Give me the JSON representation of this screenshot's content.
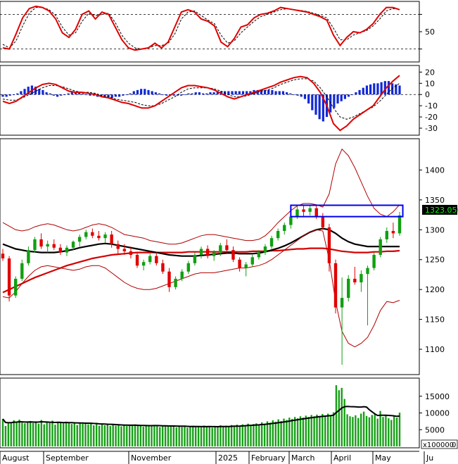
{
  "chart_data": [
    {
      "id": "stochastic",
      "type": "line",
      "y_ticks": [
        50
      ],
      "guides": [
        80,
        20
      ],
      "series": [
        {
          "color": "#e00000",
          "values": [
            22,
            20,
            46,
            74,
            90,
            94,
            92,
            86,
            72,
            48,
            40,
            54,
            80,
            86,
            72,
            84,
            80,
            58,
            36,
            22,
            18,
            20,
            22,
            30,
            22,
            32,
            58,
            84,
            88,
            84,
            72,
            68,
            60,
            32,
            24,
            38,
            58,
            62,
            74,
            80,
            82,
            86,
            92,
            90,
            88,
            86,
            84,
            80,
            76,
            70,
            44,
            26,
            40,
            50,
            48,
            54,
            64,
            80,
            92,
            92,
            88
          ]
        },
        {
          "color": "#000000",
          "values": [
            28,
            22,
            34,
            60,
            82,
            92,
            92,
            88,
            78,
            58,
            44,
            48,
            68,
            82,
            78,
            80,
            82,
            66,
            44,
            30,
            22,
            20,
            22,
            26,
            26,
            30,
            46,
            72,
            84,
            86,
            78,
            70,
            64,
            44,
            30,
            34,
            48,
            58,
            68,
            76,
            80,
            84,
            88,
            90,
            88,
            87,
            85,
            82,
            78,
            74,
            56,
            36,
            36,
            44,
            48,
            52,
            60,
            72,
            86,
            90,
            89
          ]
        }
      ],
      "ylim": [
        0,
        100
      ]
    },
    {
      "id": "macd",
      "type": "bar",
      "y_ticks": [
        20,
        10,
        0,
        -10,
        -20,
        -30
      ],
      "ylim": [
        -35,
        24
      ],
      "histogram": [
        -2,
        -2,
        -1,
        0,
        1,
        3,
        5,
        7,
        8,
        7,
        5,
        4,
        2,
        1,
        -1,
        -2,
        -1,
        0,
        1,
        2,
        2,
        2,
        1,
        0,
        -1,
        -1,
        -2,
        -2,
        -3,
        -3,
        -3,
        -2,
        -2,
        -1,
        0,
        1,
        3,
        4,
        5,
        5,
        4,
        3,
        2,
        1,
        0,
        -1,
        -1,
        -1,
        -1,
        -1,
        0,
        1,
        1,
        2,
        2,
        1,
        1,
        2,
        2,
        3,
        3,
        3,
        3,
        3,
        3,
        3,
        3,
        3,
        3,
        4,
        4,
        4,
        4,
        4,
        4,
        3,
        3,
        3,
        2,
        1,
        0,
        -1,
        -2,
        -4,
        -8,
        -14,
        -18,
        -22,
        -24,
        -20,
        -16,
        -12,
        -8,
        -6,
        -4,
        -2,
        0,
        2,
        4,
        6,
        8,
        9,
        10,
        10,
        11,
        12,
        12,
        10,
        9,
        8
      ],
      "series": [
        {
          "color": "#e00000",
          "values": [
            -6,
            -8,
            -6,
            -2,
            2,
            6,
            9,
            10,
            9,
            6,
            3,
            2,
            2,
            1,
            0,
            -2,
            -3,
            -5,
            -7,
            -8,
            -10,
            -12,
            -12,
            -10,
            -6,
            -2,
            2,
            6,
            8,
            8,
            7,
            6,
            4,
            1,
            -2,
            -4,
            -2,
            0,
            2,
            4,
            6,
            8,
            11,
            13,
            15,
            16,
            15,
            10,
            2,
            -10,
            -26,
            -32,
            -28,
            -22,
            -18,
            -14,
            -10,
            -2,
            6,
            12,
            17
          ]
        },
        {
          "color": "#000000",
          "values": [
            -4,
            -5,
            -5,
            -3,
            0,
            3,
            6,
            8,
            8,
            7,
            5,
            3,
            2,
            2,
            1,
            -1,
            -2,
            -4,
            -5,
            -6,
            -7,
            -9,
            -10,
            -10,
            -8,
            -5,
            -2,
            2,
            5,
            6,
            6,
            6,
            5,
            3,
            0,
            -2,
            -2,
            -1,
            1,
            3,
            4,
            6,
            9,
            11,
            13,
            14,
            14,
            12,
            6,
            -2,
            -12,
            -20,
            -22,
            -20,
            -17,
            -14,
            -11,
            -6,
            0,
            6,
            10
          ]
        }
      ]
    },
    {
      "id": "price",
      "type": "candlestick",
      "last_value_label": "1323.050",
      "ylim": [
        1060,
        1450
      ],
      "y_ticks": [
        1400,
        1350,
        1300,
        1250,
        1200,
        1150,
        1100
      ],
      "ohlc": [
        [
          1260,
          1268,
          1248,
          1252
        ],
        [
          1252,
          1256,
          1180,
          1190
        ],
        [
          1190,
          1222,
          1186,
          1218
        ],
        [
          1218,
          1250,
          1214,
          1244
        ],
        [
          1244,
          1272,
          1240,
          1266
        ],
        [
          1266,
          1288,
          1262,
          1284
        ],
        [
          1284,
          1294,
          1268,
          1272
        ],
        [
          1272,
          1282,
          1262,
          1276
        ],
        [
          1276,
          1284,
          1266,
          1270
        ],
        [
          1270,
          1276,
          1258,
          1262
        ],
        [
          1262,
          1274,
          1256,
          1270
        ],
        [
          1270,
          1282,
          1266,
          1280
        ],
        [
          1280,
          1292,
          1272,
          1288
        ],
        [
          1288,
          1300,
          1284,
          1296
        ],
        [
          1296,
          1302,
          1286,
          1290
        ],
        [
          1290,
          1298,
          1282,
          1286
        ],
        [
          1286,
          1296,
          1278,
          1292
        ],
        [
          1292,
          1298,
          1270,
          1276
        ],
        [
          1276,
          1282,
          1260,
          1268
        ],
        [
          1268,
          1276,
          1258,
          1264
        ],
        [
          1264,
          1272,
          1252,
          1258
        ],
        [
          1258,
          1262,
          1236,
          1240
        ],
        [
          1240,
          1250,
          1232,
          1246
        ],
        [
          1246,
          1260,
          1242,
          1256
        ],
        [
          1256,
          1262,
          1240,
          1244
        ],
        [
          1244,
          1250,
          1226,
          1230
        ],
        [
          1230,
          1236,
          1196,
          1204
        ],
        [
          1204,
          1222,
          1200,
          1218
        ],
        [
          1218,
          1234,
          1214,
          1230
        ],
        [
          1230,
          1248,
          1226,
          1244
        ],
        [
          1244,
          1262,
          1240,
          1258
        ],
        [
          1258,
          1272,
          1252,
          1268
        ],
        [
          1268,
          1274,
          1252,
          1256
        ],
        [
          1256,
          1266,
          1248,
          1262
        ],
        [
          1262,
          1278,
          1256,
          1274
        ],
        [
          1274,
          1284,
          1262,
          1266
        ],
        [
          1266,
          1272,
          1246,
          1250
        ],
        [
          1250,
          1254,
          1230,
          1236
        ],
        [
          1236,
          1246,
          1222,
          1242
        ],
        [
          1242,
          1258,
          1238,
          1254
        ],
        [
          1254,
          1266,
          1250,
          1262
        ],
        [
          1262,
          1276,
          1258,
          1272
        ],
        [
          1272,
          1290,
          1268,
          1286
        ],
        [
          1286,
          1302,
          1282,
          1298
        ],
        [
          1298,
          1312,
          1292,
          1308
        ],
        [
          1308,
          1326,
          1302,
          1322
        ],
        [
          1322,
          1340,
          1318,
          1334
        ],
        [
          1334,
          1342,
          1322,
          1330
        ],
        [
          1330,
          1340,
          1324,
          1336
        ],
        [
          1336,
          1342,
          1318,
          1322
        ],
        [
          1322,
          1328,
          1300,
          1304
        ],
        [
          1304,
          1310,
          1230,
          1244
        ],
        [
          1244,
          1250,
          1160,
          1170
        ],
        [
          1170,
          1220,
          1074,
          1186
        ],
        [
          1186,
          1224,
          1180,
          1218
        ],
        [
          1218,
          1238,
          1208,
          1212
        ],
        [
          1212,
          1232,
          1196,
          1226
        ],
        [
          1226,
          1240,
          1140,
          1236
        ],
        [
          1236,
          1262,
          1232,
          1258
        ],
        [
          1258,
          1288,
          1254,
          1284
        ],
        [
          1284,
          1304,
          1278,
          1298
        ],
        [
          1298,
          1312,
          1286,
          1294
        ],
        [
          1294,
          1330,
          1290,
          1324
        ]
      ],
      "overlays": [
        {
          "name": "long_ma",
          "color": "#d40000",
          "width": 2.2,
          "values": [
            1195,
            1200,
            1205,
            1210,
            1215,
            1220,
            1224,
            1228,
            1232,
            1236,
            1240,
            1243,
            1246,
            1249,
            1252,
            1254,
            1256,
            1258,
            1259,
            1260,
            1261,
            1262,
            1262,
            1262,
            1262,
            1262,
            1262,
            1262,
            1262,
            1263,
            1263,
            1263,
            1263,
            1263,
            1263,
            1263,
            1263,
            1263,
            1263,
            1264,
            1264,
            1264,
            1265,
            1265,
            1266,
            1267,
            1268,
            1268,
            1269,
            1269,
            1269,
            1268,
            1266,
            1264,
            1263,
            1262,
            1262,
            1262,
            1263,
            1263,
            1264,
            1264,
            1265
          ]
        },
        {
          "name": "mid_ma",
          "color": "#000000",
          "width": 2.2,
          "values": [
            1276,
            1272,
            1268,
            1266,
            1264,
            1263,
            1262,
            1262,
            1262,
            1263,
            1265,
            1267,
            1270,
            1272,
            1274,
            1276,
            1277,
            1276,
            1274,
            1272,
            1270,
            1268,
            1266,
            1264,
            1262,
            1260,
            1258,
            1257,
            1256,
            1256,
            1256,
            1257,
            1258,
            1259,
            1260,
            1261,
            1261,
            1260,
            1260,
            1260,
            1261,
            1263,
            1266,
            1269,
            1273,
            1278,
            1284,
            1290,
            1296,
            1300,
            1302,
            1300,
            1294,
            1286,
            1280,
            1276,
            1274,
            1272,
            1272,
            1272,
            1272,
            1272,
            1272
          ]
        },
        {
          "name": "band_upper",
          "color": "#b00000",
          "width": 1,
          "values": [
            1312,
            1306,
            1300,
            1298,
            1300,
            1305,
            1308,
            1310,
            1308,
            1304,
            1300,
            1298,
            1300,
            1304,
            1308,
            1310,
            1308,
            1304,
            1298,
            1292,
            1290,
            1288,
            1286,
            1282,
            1280,
            1278,
            1276,
            1276,
            1278,
            1282,
            1286,
            1290,
            1292,
            1292,
            1290,
            1288,
            1286,
            1284,
            1282,
            1282,
            1284,
            1290,
            1300,
            1312,
            1322,
            1332,
            1340,
            1344,
            1344,
            1342,
            1338,
            1360,
            1410,
            1435,
            1424,
            1404,
            1380,
            1356,
            1336,
            1326,
            1322,
            1330,
            1342
          ]
        },
        {
          "name": "band_lower",
          "color": "#b00000",
          "width": 1,
          "values": [
            1188,
            1186,
            1196,
            1210,
            1222,
            1232,
            1238,
            1240,
            1238,
            1236,
            1234,
            1232,
            1234,
            1238,
            1240,
            1240,
            1236,
            1228,
            1220,
            1212,
            1206,
            1202,
            1200,
            1200,
            1202,
            1206,
            1210,
            1214,
            1218,
            1222,
            1226,
            1228,
            1228,
            1228,
            1230,
            1232,
            1234,
            1236,
            1236,
            1238,
            1240,
            1244,
            1250,
            1258,
            1266,
            1274,
            1282,
            1290,
            1296,
            1300,
            1298,
            1250,
            1180,
            1130,
            1110,
            1104,
            1110,
            1120,
            1140,
            1165,
            1180,
            1178,
            1182
          ]
        }
      ],
      "box": {
        "x_from": 45,
        "x_to": 62.5,
        "y_from": 1322,
        "y_to": 1341
      }
    },
    {
      "id": "volume",
      "type": "bar",
      "y_ticks": [
        15000,
        10000,
        5000
      ],
      "y_bottom_label": "0",
      "unit_label": "x100000",
      "ylim": [
        0,
        20000
      ],
      "values": [
        8200,
        6100,
        6900,
        7200,
        7800,
        7400,
        8000,
        7100,
        6900,
        7300,
        7600,
        7000,
        7500,
        6800,
        7900,
        6600,
        7200,
        7000,
        7700,
        6500,
        7300,
        7100,
        6900,
        7400,
        7000,
        6700,
        7200,
        6400,
        6900,
        6800,
        7100,
        6600,
        7000,
        6300,
        6700,
        6200,
        6600,
        6300,
        6800,
        6100,
        6500,
        6200,
        6400,
        6000,
        6300,
        6100,
        6500,
        6200,
        6600,
        6100,
        6300,
        5900,
        6200,
        6000,
        6400,
        6100,
        6300,
        5800,
        6200,
        6000,
        6100,
        5900,
        6300,
        5700,
        6000,
        5800,
        6200,
        5600,
        5900,
        6100,
        5800,
        6000,
        5700,
        6200,
        5900,
        6100,
        5600,
        6000,
        5800,
        6300,
        6000,
        6200,
        5800,
        6400,
        6100,
        6500,
        6200,
        6600,
        6300,
        6800,
        6400,
        6700,
        6900,
        6500,
        7200,
        6800,
        7500,
        7100,
        7800,
        7400,
        8100,
        7600,
        8300,
        7900,
        8600,
        8200,
        8800,
        8400,
        9000,
        8600,
        9200,
        8800,
        9400,
        9000,
        9500,
        9100,
        9700,
        9200,
        9800,
        9300,
        10200,
        18300,
        16800,
        17500,
        14200,
        9600,
        9000,
        8800,
        9300,
        8500,
        9800,
        10400,
        9100,
        8700,
        9400,
        9900,
        8300,
        10600,
        8800,
        9200,
        8400,
        7900,
        9000,
        8600,
        10100
      ]
    }
  ],
  "x_axis": {
    "labels": [
      "August",
      "September",
      "November",
      "2025",
      "February",
      "March",
      "April",
      "May",
      "Ju"
    ]
  }
}
